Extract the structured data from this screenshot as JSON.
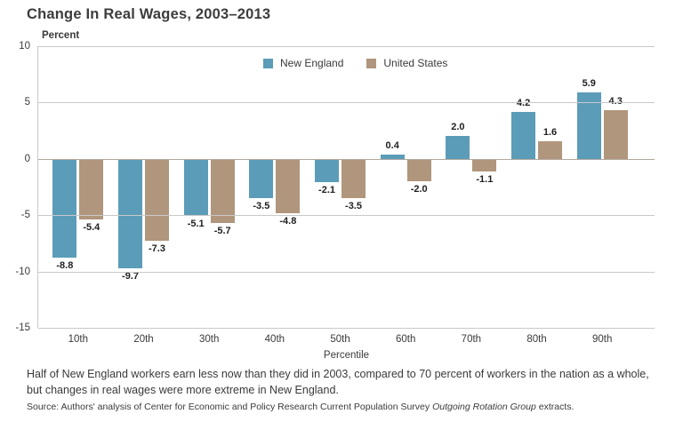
{
  "header": {
    "title": "Change In Real Wages, 2003–2013"
  },
  "chart_data": {
    "type": "bar",
    "title": "Change In Real Wages, 2003–2013",
    "unit_label": "Percent",
    "xlabel": "Percentile",
    "ylabel": "Percent",
    "categories": [
      "10th",
      "20th",
      "30th",
      "40th",
      "50th",
      "60th",
      "70th",
      "80th",
      "90th"
    ],
    "series": [
      {
        "name": "New England",
        "color": "#5b9cb8",
        "values": [
          -8.8,
          -9.7,
          -5.1,
          -3.5,
          -2.1,
          0.4,
          2.0,
          4.2,
          5.9
        ]
      },
      {
        "name": "United States",
        "color": "#b0967c",
        "values": [
          -5.4,
          -7.3,
          -5.7,
          -4.8,
          -3.5,
          -2.0,
          -1.1,
          1.6,
          4.3
        ]
      }
    ],
    "ylim": [
      -15,
      10
    ],
    "yticks": [
      10,
      5,
      0,
      -5,
      -10,
      -15
    ],
    "grid": true,
    "legend_position": "top-center",
    "value_labels_decimals": 1
  },
  "notes": {
    "footnote": "Half of New England workers earn less now than they did in 2003, compared to 70 percent of workers in the nation as a whole, but changes in real wages were more extreme in New England.",
    "source_prefix": "Source: Authors' analysis of Center for Economic and Policy Research Current Population Survey ",
    "source_italic": "Outgoing Rotation Group",
    "source_suffix": " extracts."
  },
  "colors": {
    "new_england": "#5b9cb8",
    "united_states": "#b0967c",
    "gridline": "#c9c9c9",
    "zero_line": "#b2a89e",
    "text": "#3a3a3a"
  }
}
